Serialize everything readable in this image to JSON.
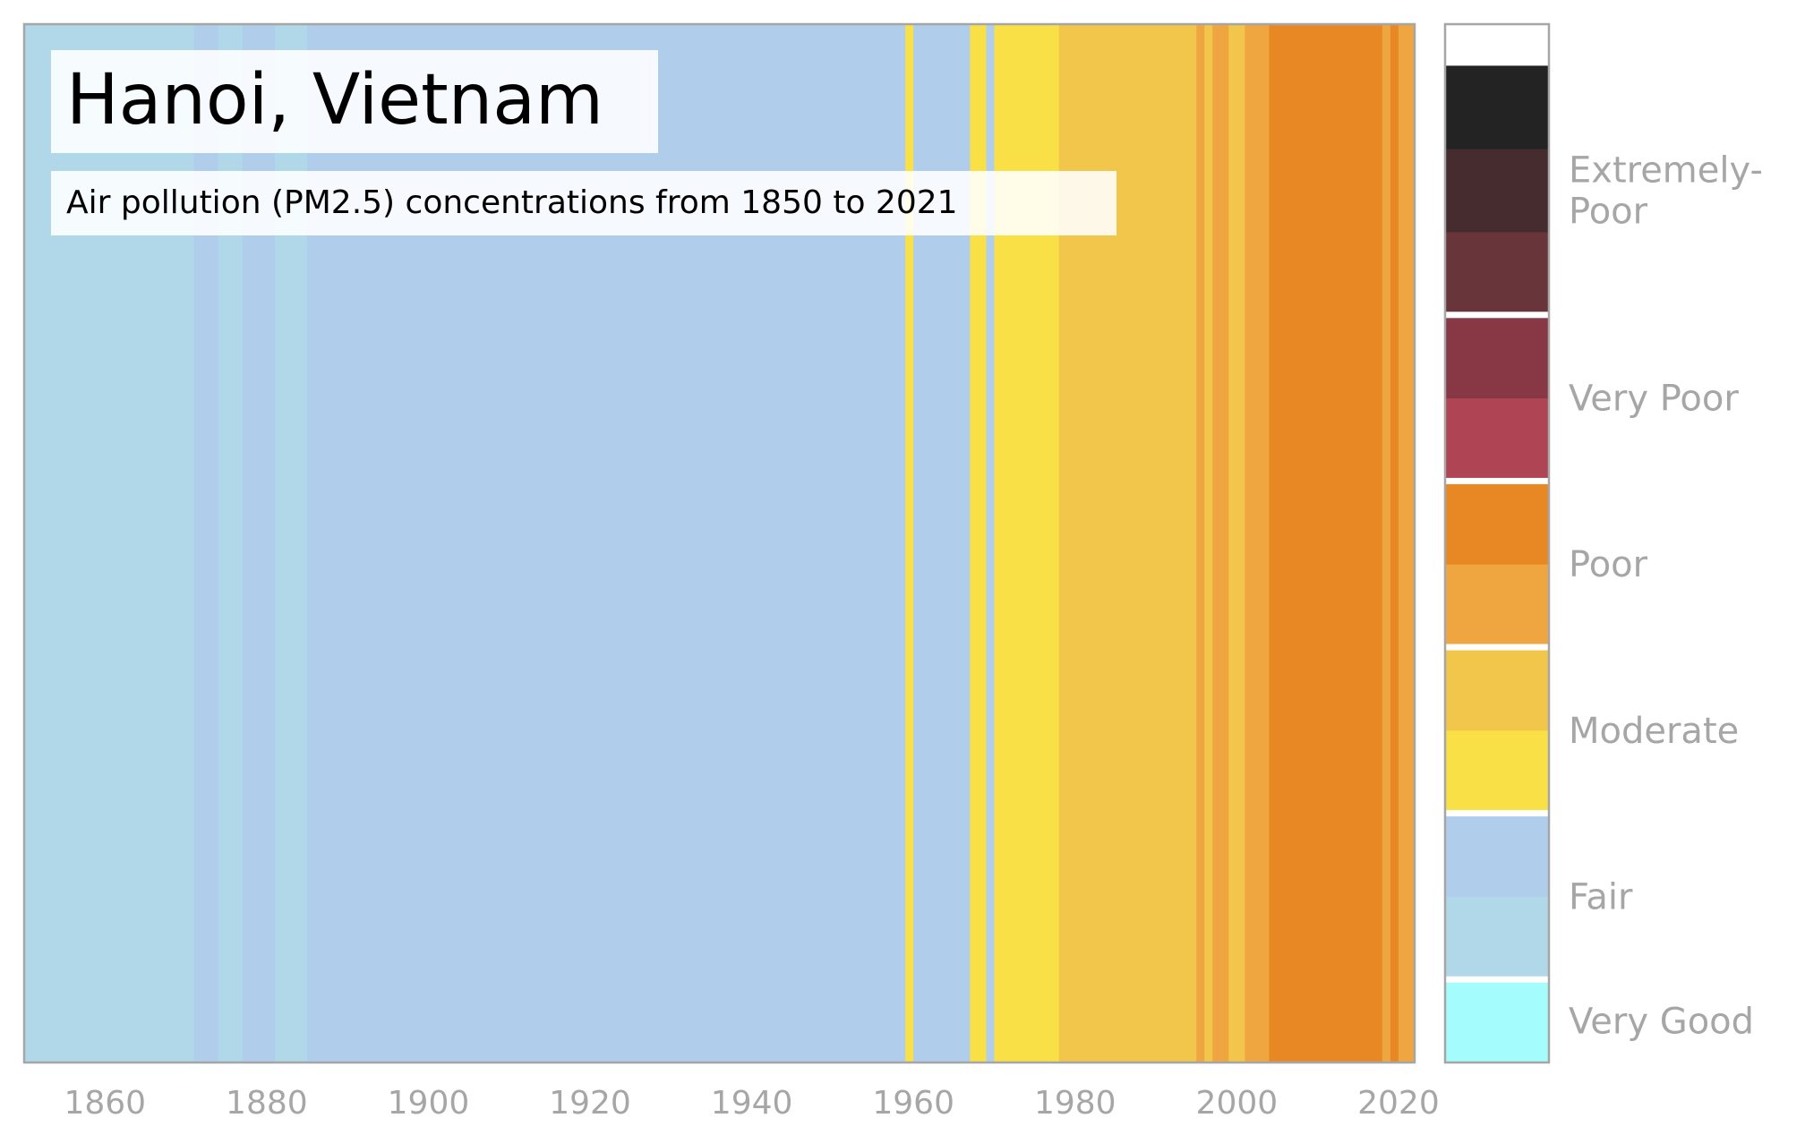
{
  "chart_data": {
    "type": "heatmap",
    "title": "Hanoi, Vietnam",
    "subtitle": "Air pollution (PM2.5) concentrations from 1850 to 2021",
    "xlim": [
      1850,
      2022
    ],
    "x_ticks": [
      1860,
      1880,
      1900,
      1920,
      1940,
      1960,
      1980,
      2000,
      2020
    ],
    "stripes": [
      {
        "start": 1850,
        "end": 1871,
        "level": "fair_low",
        "color": "#b0d8e8"
      },
      {
        "start": 1871,
        "end": 1874,
        "level": "fair_high",
        "color": "#b0ceec"
      },
      {
        "start": 1874,
        "end": 1877,
        "level": "fair_low",
        "color": "#b0d8e8"
      },
      {
        "start": 1877,
        "end": 1881,
        "level": "fair_high",
        "color": "#b0ceec"
      },
      {
        "start": 1881,
        "end": 1885,
        "level": "fair_low",
        "color": "#b0d8e8"
      },
      {
        "start": 1885,
        "end": 1959,
        "level": "fair_high",
        "color": "#b0ceec"
      },
      {
        "start": 1959,
        "end": 1960,
        "level": "moderate_low",
        "color": "#f9e046"
      },
      {
        "start": 1960,
        "end": 1967,
        "level": "fair_high",
        "color": "#b0ceec"
      },
      {
        "start": 1967,
        "end": 1969,
        "level": "moderate_low",
        "color": "#f9e046"
      },
      {
        "start": 1969,
        "end": 1970,
        "level": "fair_high",
        "color": "#b0ceec"
      },
      {
        "start": 1970,
        "end": 1978,
        "level": "moderate_low",
        "color": "#f9e046"
      },
      {
        "start": 1978,
        "end": 1995,
        "level": "moderate_high",
        "color": "#f2c64b"
      },
      {
        "start": 1995,
        "end": 1996,
        "level": "poor_low",
        "color": "#f0a640"
      },
      {
        "start": 1996,
        "end": 1997,
        "level": "moderate_high",
        "color": "#f2c64b"
      },
      {
        "start": 1997,
        "end": 1999,
        "level": "poor_low",
        "color": "#f0a640"
      },
      {
        "start": 1999,
        "end": 2001,
        "level": "moderate_high",
        "color": "#f2c64b"
      },
      {
        "start": 2001,
        "end": 2004,
        "level": "poor_low",
        "color": "#f0a640"
      },
      {
        "start": 2004,
        "end": 2018,
        "level": "poor_high",
        "color": "#e88824"
      },
      {
        "start": 2018,
        "end": 2019,
        "level": "poor_low",
        "color": "#f0a640"
      },
      {
        "start": 2019,
        "end": 2020,
        "level": "poor_high",
        "color": "#e88824"
      },
      {
        "start": 2020,
        "end": 2022,
        "level": "poor_low",
        "color": "#f0a640"
      }
    ],
    "legend": {
      "position": "right",
      "levels": [
        {
          "label": "Very Good",
          "colors": [
            "#a4fcfc"
          ]
        },
        {
          "label": "Fair",
          "colors": [
            "#b0d8e8",
            "#b0ceec"
          ]
        },
        {
          "label": "Moderate",
          "colors": [
            "#f9e046",
            "#f2c64b"
          ]
        },
        {
          "label": "Poor",
          "colors": [
            "#f0a640",
            "#e88824"
          ]
        },
        {
          "label": "Very Poor",
          "colors": [
            "#af4554",
            "#883744"
          ]
        },
        {
          "label": "Extremely-\nPoor",
          "colors": [
            "#68363a",
            "#462c2e",
            "#232323"
          ]
        }
      ]
    },
    "grid": false
  }
}
